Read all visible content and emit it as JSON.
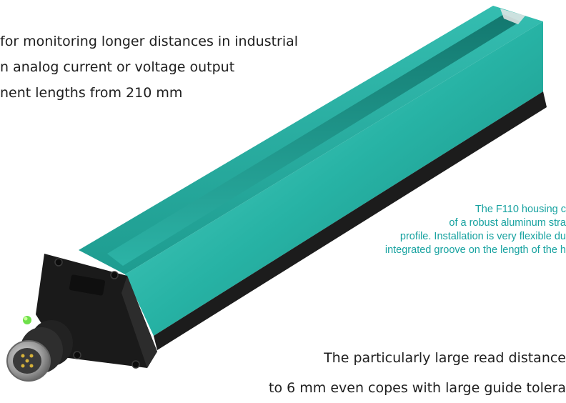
{
  "bullets": [
    "for monitoring longer distances in industrial",
    "n analog current or voltage output",
    "nent lengths from 210 mm"
  ],
  "caption": [
    "The F110 housing c",
    "of a robust aluminum stra",
    "profile. Installation is very flexible du",
    "integrated groove on the length of the h"
  ],
  "body_text": [
    "The particularly large read distance",
    "to 6 mm even copes with large guide tolera"
  ],
  "colors": {
    "housing_teal": "#1fa79a",
    "housing_teal_light": "#4fd0c2",
    "end_cap_black": "#1a1a1a",
    "led_green": "#6ee04a",
    "caption_teal": "#17a2a0"
  },
  "icons": [
    "product-photo-sensor",
    "m12-connector-icon",
    "status-led-icon"
  ]
}
